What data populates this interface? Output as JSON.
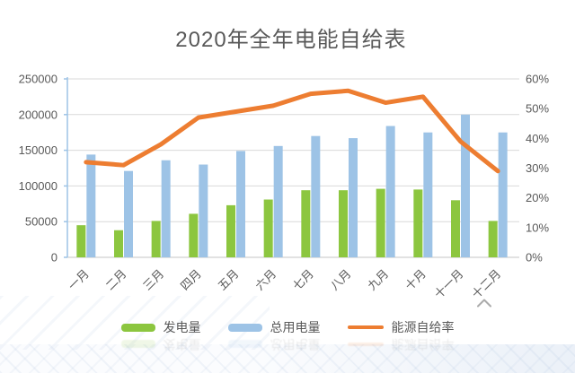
{
  "title": {
    "text": "2020年全年电能自给表"
  },
  "colors": {
    "title_text": "#595959",
    "axis_text": "#595959",
    "gridline": "#d9d9d9",
    "left_axis_line": "#9dc3e6",
    "x_axis_line": "#d0d0d0",
    "generation_bar": "#8cc63f",
    "consumption_bar": "#9dc3e6",
    "rate_line": "#ed7d31",
    "chevron": "#8f8f8f"
  },
  "chart_data": {
    "type": "combo-bar-line",
    "title": "2020年全年电能自给表",
    "categories": [
      "一月",
      "二月",
      "三月",
      "四月",
      "五月",
      "六月",
      "七月",
      "八月",
      "九月",
      "十月",
      "十一月",
      "十二月"
    ],
    "series": [
      {
        "name": "发电量",
        "type": "bar",
        "axis": "left",
        "color": "#8cc63f",
        "values": [
          45000,
          38000,
          51000,
          61000,
          73000,
          81000,
          94000,
          94000,
          96000,
          95000,
          80000,
          51000
        ]
      },
      {
        "name": "总用电量",
        "type": "bar",
        "axis": "left",
        "color": "#9dc3e6",
        "values": [
          144000,
          121000,
          136000,
          130000,
          149000,
          156000,
          170000,
          167000,
          184000,
          175000,
          200000,
          175000
        ]
      },
      {
        "name": "能源自给率",
        "type": "line",
        "axis": "right",
        "unit": "%",
        "color": "#ed7d31",
        "values": [
          32,
          31,
          38,
          47,
          49,
          51,
          55,
          56,
          52,
          54,
          39,
          29
        ]
      }
    ],
    "left_axis": {
      "min": 0,
      "max": 250000,
      "tick_values": [
        0,
        50000,
        100000,
        150000,
        200000,
        250000
      ],
      "tick_labels": [
        "0",
        "50000",
        "100000",
        "150000",
        "200000",
        "250000"
      ]
    },
    "right_axis": {
      "min": 0,
      "max": 60,
      "tick_values": [
        0,
        10,
        20,
        30,
        40,
        50,
        60
      ],
      "tick_labels": [
        "0%",
        "10%",
        "20%",
        "30%",
        "40%",
        "50%",
        "60%"
      ]
    },
    "grid": true,
    "legend_position": "bottom"
  }
}
